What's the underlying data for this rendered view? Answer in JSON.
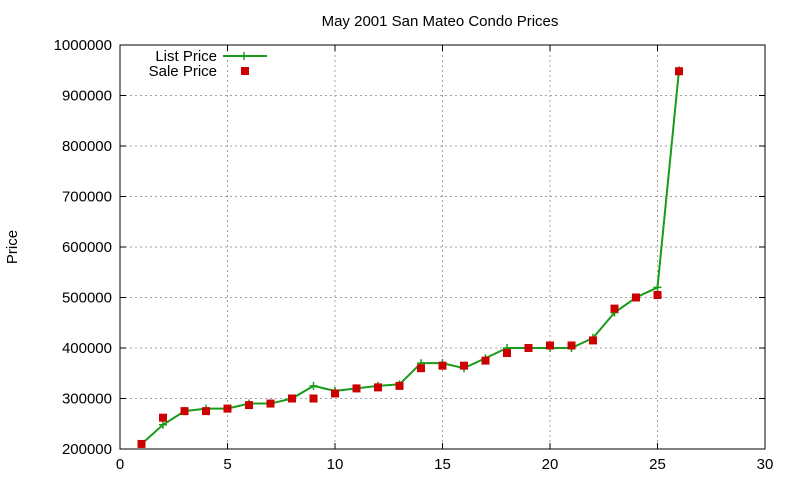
{
  "chart_data": {
    "type": "line",
    "title": "May 2001 San Mateo Condo Prices",
    "xlabel": "",
    "ylabel": "Price",
    "xlim": [
      0,
      30
    ],
    "ylim": [
      200000,
      1000000
    ],
    "xticks": [
      0,
      5,
      10,
      15,
      20,
      25,
      30
    ],
    "yticks": [
      200000,
      300000,
      400000,
      500000,
      600000,
      700000,
      800000,
      900000,
      1000000
    ],
    "grid": true,
    "legend_position": "top-left",
    "colors": {
      "list": "#1a9c1a",
      "sale": "#cc0000",
      "grid": "#a0a0a0"
    },
    "x": [
      1,
      2,
      3,
      4,
      5,
      6,
      7,
      8,
      9,
      10,
      11,
      12,
      13,
      14,
      15,
      16,
      17,
      18,
      19,
      20,
      21,
      22,
      23,
      24,
      25,
      26
    ],
    "series": [
      {
        "name": "List Price",
        "style": "line-plus",
        "values": [
          210000,
          248000,
          275000,
          280000,
          280000,
          290000,
          290000,
          300000,
          325000,
          315000,
          320000,
          325000,
          328000,
          370000,
          370000,
          360000,
          380000,
          400000,
          400000,
          400000,
          400000,
          420000,
          470000,
          500000,
          520000,
          950000
        ]
      },
      {
        "name": "Sale Price",
        "style": "square",
        "values": [
          210000,
          262000,
          275000,
          275000,
          280000,
          287000,
          290000,
          300000,
          300000,
          310000,
          320000,
          322000,
          325000,
          360000,
          365000,
          365000,
          375000,
          390000,
          400000,
          405000,
          405000,
          415000,
          478000,
          500000,
          505000,
          948000
        ]
      }
    ]
  }
}
